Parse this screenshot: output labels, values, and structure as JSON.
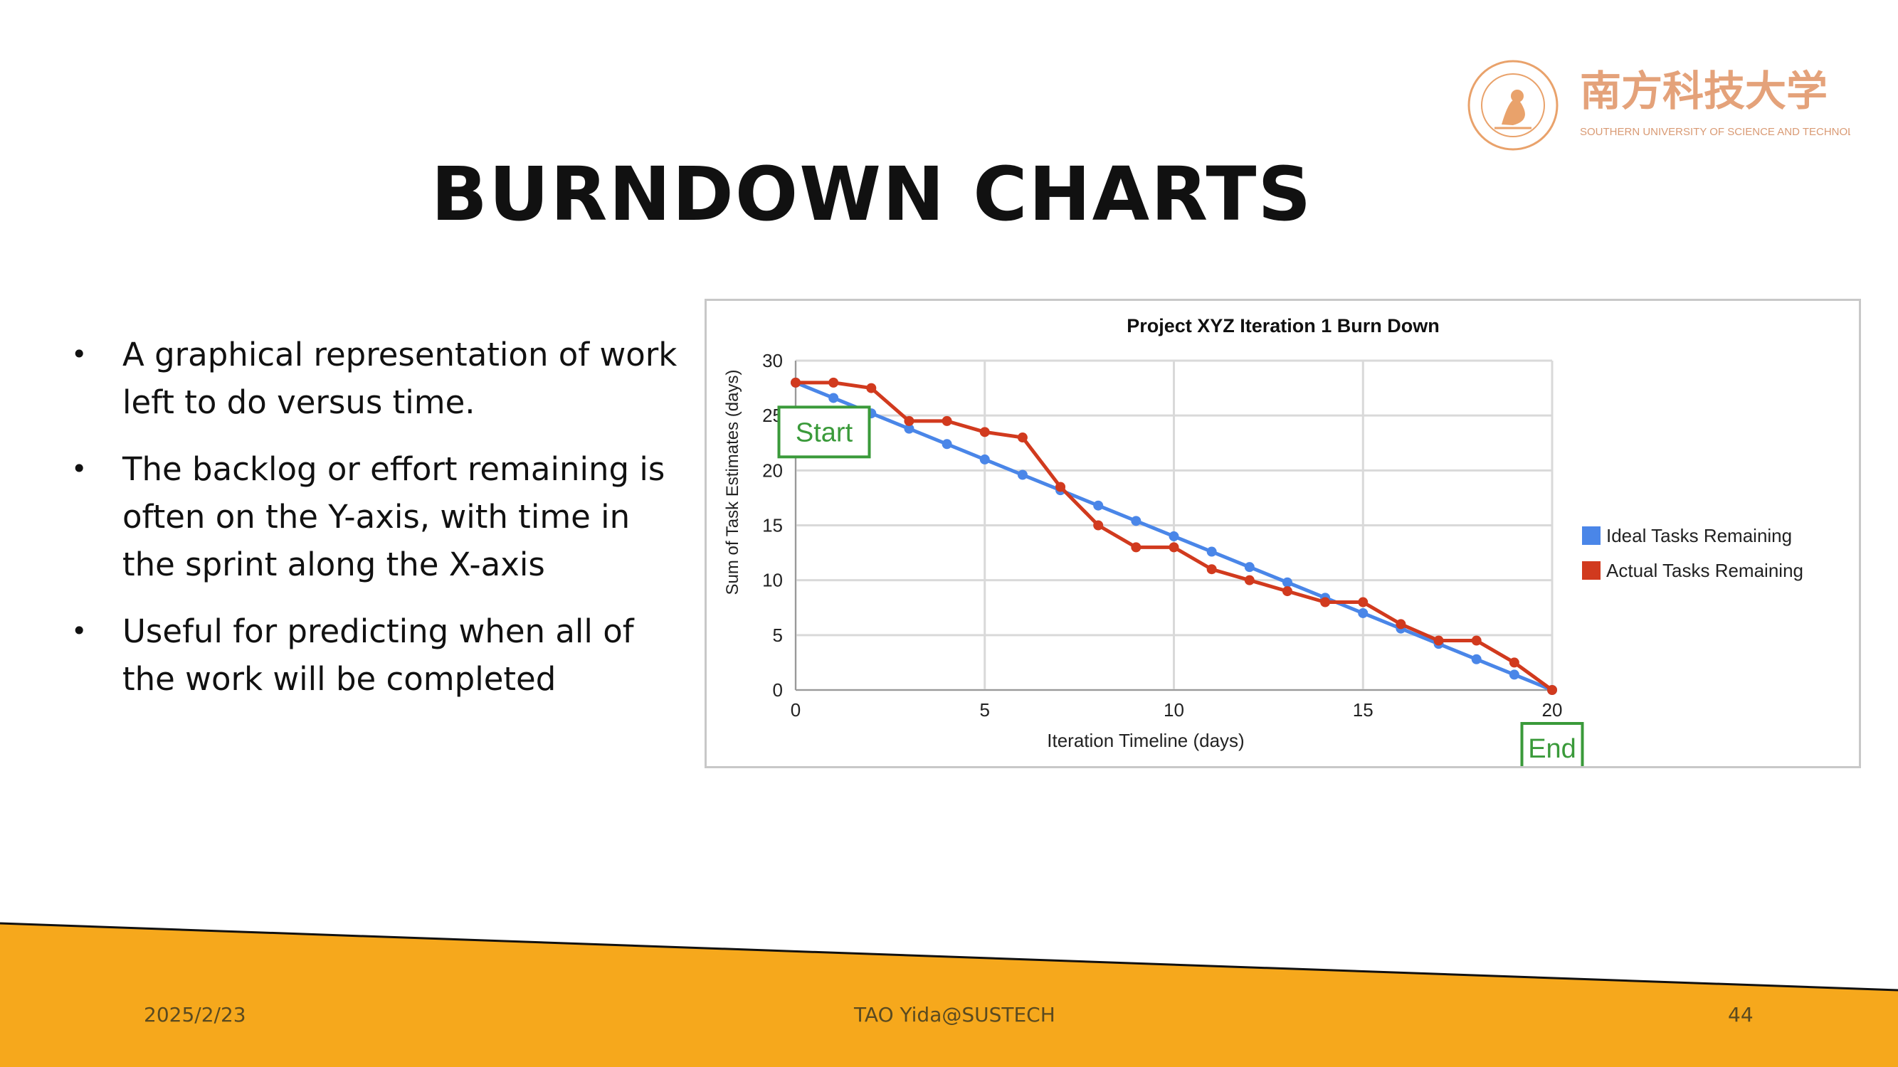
{
  "slide": {
    "title": "BURNDOWN CHARTS",
    "bullets": [
      "A graphical representation of work left to do versus time.",
      "The backlog or effort remaining is often on the Y-axis, with time in the sprint along the X-axis",
      "Useful for predicting when all of the work will be completed"
    ],
    "footer": {
      "date": "2025/2/23",
      "center": "TAO Yida@SUSTECH",
      "page": "44"
    },
    "logo": {
      "name": "南方科技大学",
      "subtitle": "SOUTHERN UNIVERSITY OF SCIENCE AND TECHNOLOGY"
    },
    "colors": {
      "accent": "#F6A81C",
      "ideal": "#4A86E8",
      "actual": "#D13A1E",
      "callout": "#3A9A3A"
    }
  },
  "chart_data": {
    "type": "line",
    "title": "Project XYZ Iteration 1 Burn Down",
    "xlabel": "Iteration Timeline (days)",
    "ylabel": "Sum of Task Estimates (days)",
    "xlim": [
      0,
      20
    ],
    "ylim": [
      0,
      30
    ],
    "xticks": [
      0,
      5,
      10,
      15,
      20
    ],
    "yticks": [
      0,
      5,
      10,
      15,
      20,
      25,
      30
    ],
    "grid": true,
    "legend_position": "right",
    "x": [
      0,
      1,
      2,
      3,
      4,
      5,
      6,
      7,
      8,
      9,
      10,
      11,
      12,
      13,
      14,
      15,
      16,
      17,
      18,
      19,
      20
    ],
    "series": [
      {
        "name": "Ideal Tasks Remaining",
        "color": "#4A86E8",
        "values": [
          28,
          26.6,
          25.2,
          23.8,
          22.4,
          21,
          19.6,
          18.2,
          16.8,
          15.4,
          14,
          12.6,
          11.2,
          9.8,
          8.4,
          7,
          5.6,
          4.2,
          2.8,
          1.4,
          0
        ]
      },
      {
        "name": "Actual Tasks Remaining",
        "color": "#D13A1E",
        "values": [
          28,
          28,
          27.5,
          24.5,
          24.5,
          23.5,
          23,
          18.5,
          15,
          13,
          13,
          11,
          10,
          9,
          8,
          8,
          6,
          4.5,
          4.5,
          2.5,
          0
        ]
      }
    ],
    "annotations": [
      {
        "text": "Start",
        "x": 0,
        "y": 23.5
      },
      {
        "text": "End",
        "x": 20,
        "y": -5
      }
    ]
  }
}
